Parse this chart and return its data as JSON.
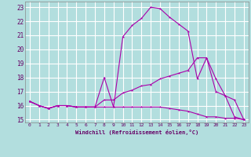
{
  "background_color": "#b2dede",
  "grid_color": "#ffffff",
  "line_color": "#aa00aa",
  "xlabel": "Windchill (Refroidissement éolien,°C)",
  "xlabel_color": "#660066",
  "tick_color": "#660066",
  "ylim": [
    14.8,
    23.4
  ],
  "yticks": [
    15,
    16,
    17,
    18,
    19,
    20,
    21,
    22,
    23
  ],
  "xlim": [
    -0.5,
    23.5
  ],
  "xticks": [
    0,
    1,
    2,
    3,
    4,
    5,
    6,
    7,
    8,
    9,
    10,
    11,
    12,
    13,
    14,
    15,
    16,
    17,
    18,
    19,
    20,
    21,
    22,
    23
  ],
  "line1_x": [
    0,
    1,
    2,
    3,
    4,
    5,
    6,
    7,
    8,
    9,
    10,
    11,
    12,
    13,
    14,
    15,
    16,
    17,
    18,
    19,
    20,
    21,
    22,
    23
  ],
  "line1_y": [
    16.3,
    16.0,
    15.8,
    16.0,
    16.0,
    15.9,
    15.9,
    15.9,
    18.0,
    15.9,
    20.9,
    21.7,
    22.2,
    23.0,
    22.9,
    22.3,
    21.8,
    21.3,
    17.9,
    19.4,
    17.0,
    16.7,
    15.2,
    15.0
  ],
  "line2_x": [
    0,
    1,
    2,
    3,
    4,
    5,
    6,
    7,
    8,
    9,
    10,
    11,
    12,
    13,
    14,
    15,
    16,
    17,
    18,
    19,
    20,
    21,
    22,
    23
  ],
  "line2_y": [
    16.3,
    16.0,
    15.8,
    16.0,
    16.0,
    15.9,
    15.9,
    15.9,
    16.4,
    16.4,
    16.9,
    17.1,
    17.4,
    17.5,
    17.9,
    18.1,
    18.3,
    18.5,
    19.4,
    19.4,
    17.9,
    16.7,
    16.4,
    15.0
  ],
  "line3_x": [
    0,
    1,
    2,
    3,
    4,
    5,
    6,
    7,
    8,
    9,
    10,
    11,
    12,
    13,
    14,
    15,
    16,
    17,
    18,
    19,
    20,
    21,
    22,
    23
  ],
  "line3_y": [
    16.3,
    16.0,
    15.8,
    16.0,
    16.0,
    15.9,
    15.9,
    15.9,
    15.9,
    15.9,
    15.9,
    15.9,
    15.9,
    15.9,
    15.9,
    15.8,
    15.7,
    15.6,
    15.4,
    15.2,
    15.2,
    15.1,
    15.1,
    15.0
  ]
}
